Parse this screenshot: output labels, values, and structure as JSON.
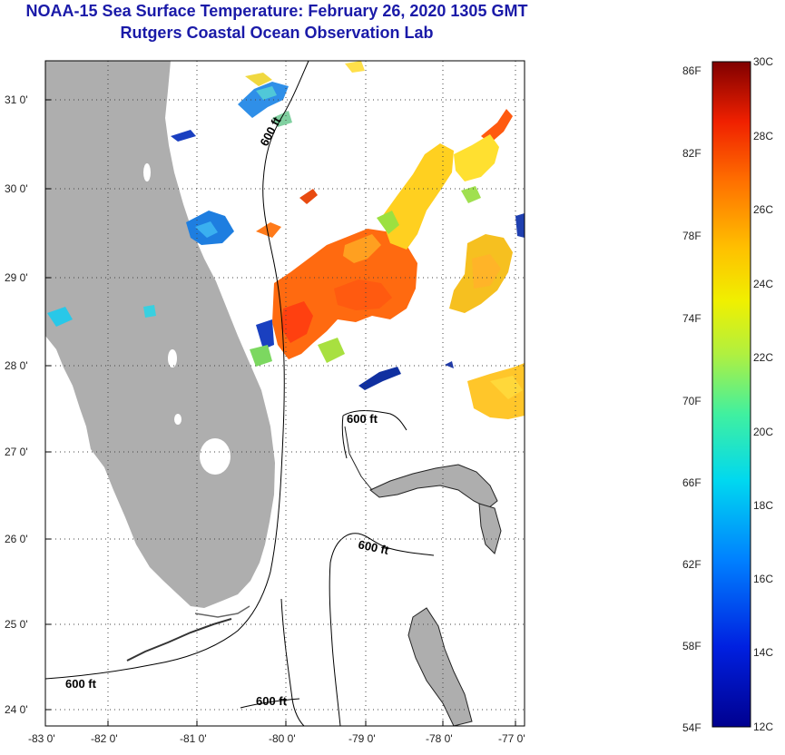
{
  "title": {
    "line1": "NOAA-15 Sea Surface Temperature:  February 26, 2020 1305 GMT",
    "line2": "Rutgers Coastal Ocean Observation Lab"
  },
  "map": {
    "lat_labels": [
      "31 0'",
      "30 0'",
      "29 0'",
      "28 0'",
      "27 0'",
      "26 0'",
      "25 0'",
      "24 0'"
    ],
    "lon_labels": [
      "-83 0'",
      "-82 0'",
      "-81 0'",
      "-80 0'",
      "-79 0'",
      "-78 0'",
      "-77 0'"
    ],
    "lat_range": [
      23.8,
      31.4
    ],
    "lon_range": [
      -83,
      -76.85
    ],
    "contour_label": "600 ft",
    "colors": {
      "land": "#aeaeae",
      "ocean_nodata": "#ffffff",
      "contour": "#000000"
    }
  },
  "colorbar": {
    "fahrenheit_labels": [
      "86F",
      "82F",
      "78F",
      "74F",
      "70F",
      "66F",
      "62F",
      "58F",
      "54F"
    ],
    "celsius_labels": [
      "30C",
      "28C",
      "26C",
      "24C",
      "22C",
      "20C",
      "18C",
      "16C",
      "14C",
      "12C"
    ],
    "celsius_range": [
      12,
      30
    ]
  }
}
